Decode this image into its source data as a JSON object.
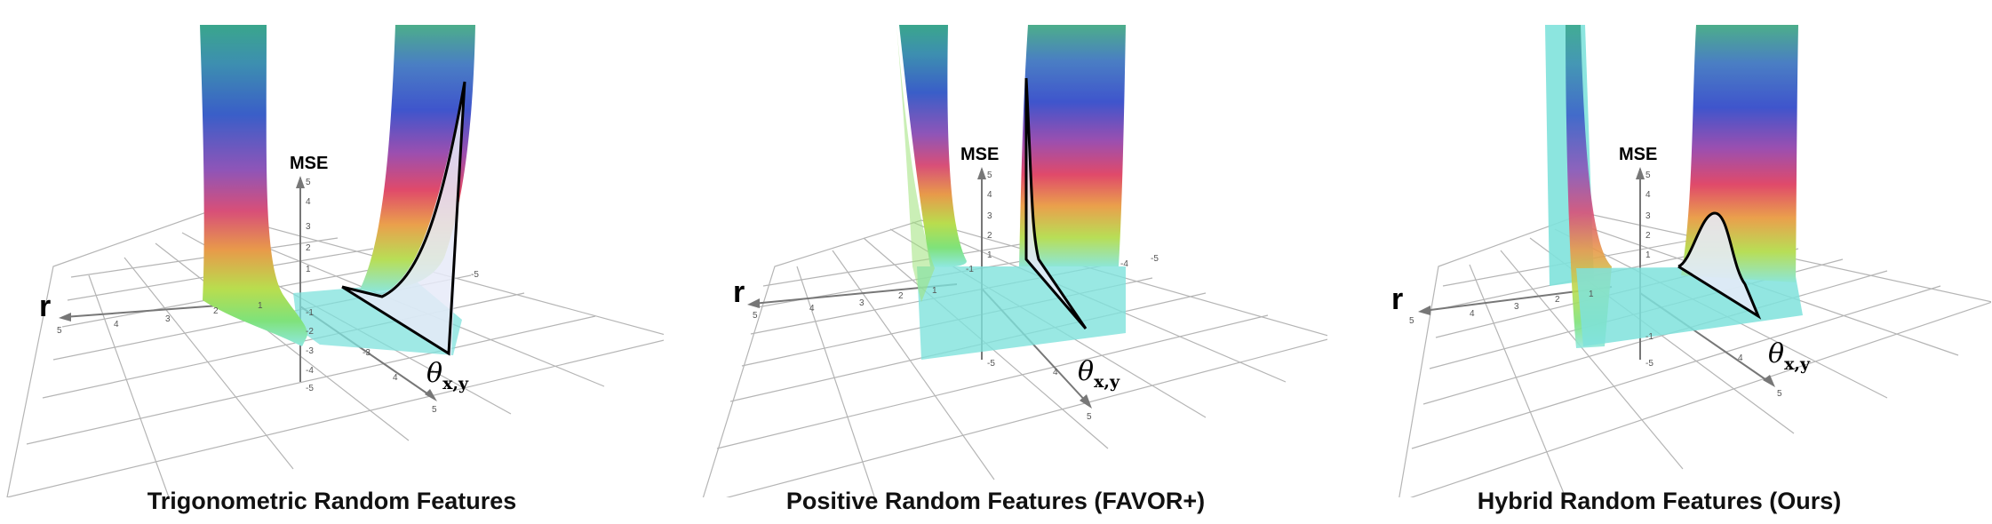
{
  "panels": [
    {
      "caption": "Trigonometric Random Features",
      "axis_z_label": "MSE",
      "axis_r_label": "r",
      "axis_theta_label": "θ",
      "axis_theta_sub": "x,y",
      "z_ticks": [
        "5",
        "4",
        "3",
        "2",
        "1",
        "-1",
        "-2",
        "-3",
        "-4",
        "-5"
      ],
      "r_ticks": [
        "5",
        "4",
        "3",
        "2",
        "1"
      ],
      "theta_ticks": [
        "-3",
        "4",
        "5",
        "-5"
      ]
    },
    {
      "caption": "Positive Random Features (FAVOR+)",
      "axis_z_label": "MSE",
      "axis_r_label": "r",
      "axis_theta_label": "θ",
      "axis_theta_sub": "x,y",
      "z_ticks": [
        "5",
        "4",
        "3",
        "2",
        "1",
        "-1",
        "-5"
      ],
      "r_ticks": [
        "5",
        "4",
        "3",
        "2",
        "1"
      ],
      "theta_ticks": [
        "4",
        "5",
        "-4",
        "-5"
      ]
    },
    {
      "caption": "Hybrid Random Features (Ours)",
      "axis_z_label": "MSE",
      "axis_r_label": "r",
      "axis_theta_label": "θ",
      "axis_theta_sub": "x,y",
      "z_ticks": [
        "5",
        "4",
        "3",
        "2",
        "1",
        "-1",
        "-5"
      ],
      "r_ticks": [
        "5",
        "4",
        "3",
        "2",
        "1"
      ],
      "theta_ticks": [
        "4",
        "5"
      ]
    }
  ]
}
